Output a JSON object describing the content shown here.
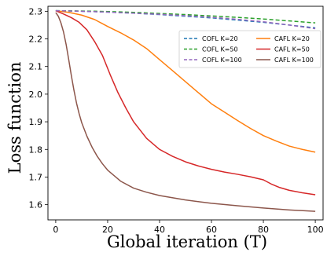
{
  "chart_data": {
    "type": "line",
    "title": "",
    "xlabel": "Global iteration (T)",
    "ylabel": "Loss function",
    "xlim": [
      -3,
      103
    ],
    "ylim": [
      1.545,
      2.318
    ],
    "xticks": [
      0,
      20,
      40,
      60,
      80,
      100
    ],
    "yticks": [
      1.6,
      1.7,
      1.8,
      1.9,
      2.0,
      2.1,
      2.2,
      2.3
    ],
    "xtick_labels": [
      "0",
      "20",
      "40",
      "60",
      "80",
      "100"
    ],
    "ytick_labels": [
      "1.6",
      "1.7",
      "1.8",
      "1.9",
      "2.0",
      "2.1",
      "2.2",
      "2.3"
    ],
    "grid": false,
    "legend_position": "upper-right, 2 columns",
    "series": [
      {
        "name": "COFL K=20",
        "color": "#1f77b4",
        "dash": "dashed",
        "x": [
          0,
          10,
          20,
          30,
          40,
          50,
          60,
          70,
          80,
          90,
          100
        ],
        "y": [
          2.302,
          2.3,
          2.297,
          2.293,
          2.288,
          2.282,
          2.276,
          2.268,
          2.26,
          2.25,
          2.24
        ]
      },
      {
        "name": "CAFL K=20",
        "color": "#ff7f0e",
        "dash": "solid",
        "x": [
          0,
          5,
          10,
          15,
          20,
          25,
          30,
          35,
          40,
          45,
          50,
          55,
          60,
          65,
          70,
          75,
          80,
          85,
          90,
          95,
          100
        ],
        "y": [
          2.302,
          2.296,
          2.286,
          2.27,
          2.245,
          2.222,
          2.196,
          2.165,
          2.125,
          2.085,
          2.045,
          2.005,
          1.965,
          1.935,
          1.905,
          1.876,
          1.85,
          1.83,
          1.812,
          1.8,
          1.79
        ]
      },
      {
        "name": "COFL K=50",
        "color": "#2ca02c",
        "dash": "dashed",
        "x": [
          0,
          10,
          20,
          30,
          40,
          50,
          60,
          70,
          80,
          90,
          100
        ],
        "y": [
          2.302,
          2.301,
          2.299,
          2.296,
          2.292,
          2.288,
          2.283,
          2.278,
          2.272,
          2.265,
          2.258
        ]
      },
      {
        "name": "CAFL K=50",
        "color": "#d62728",
        "dash": "solid",
        "x": [
          0,
          3,
          6,
          9,
          12,
          15,
          18,
          21,
          24,
          27,
          30,
          35,
          40,
          45,
          50,
          55,
          60,
          65,
          70,
          75,
          80,
          83,
          86,
          90,
          95,
          100
        ],
        "y": [
          2.302,
          2.29,
          2.277,
          2.26,
          2.233,
          2.19,
          2.14,
          2.07,
          2.005,
          1.95,
          1.9,
          1.84,
          1.8,
          1.775,
          1.755,
          1.74,
          1.728,
          1.718,
          1.71,
          1.701,
          1.69,
          1.675,
          1.663,
          1.652,
          1.643,
          1.636
        ]
      },
      {
        "name": "COFL K=100",
        "color": "#9467bd",
        "dash": "dashed",
        "x": [
          0,
          10,
          20,
          30,
          40,
          50,
          60,
          70,
          80,
          90,
          100
        ],
        "y": [
          2.302,
          2.3,
          2.297,
          2.293,
          2.289,
          2.284,
          2.278,
          2.271,
          2.262,
          2.25,
          2.237
        ]
      },
      {
        "name": "CAFL K=100",
        "color": "#8c564b",
        "dash": "solid",
        "x": [
          0,
          1,
          2,
          3,
          4,
          5,
          6,
          7,
          8,
          9,
          10,
          12,
          14,
          16,
          18,
          20,
          25,
          30,
          35,
          40,
          50,
          60,
          70,
          80,
          90,
          100
        ],
        "y": [
          2.295,
          2.282,
          2.258,
          2.225,
          2.18,
          2.125,
          2.068,
          2.015,
          1.968,
          1.93,
          1.897,
          1.848,
          1.808,
          1.775,
          1.748,
          1.725,
          1.685,
          1.66,
          1.645,
          1.633,
          1.617,
          1.605,
          1.596,
          1.588,
          1.581,
          1.576
        ]
      }
    ]
  }
}
